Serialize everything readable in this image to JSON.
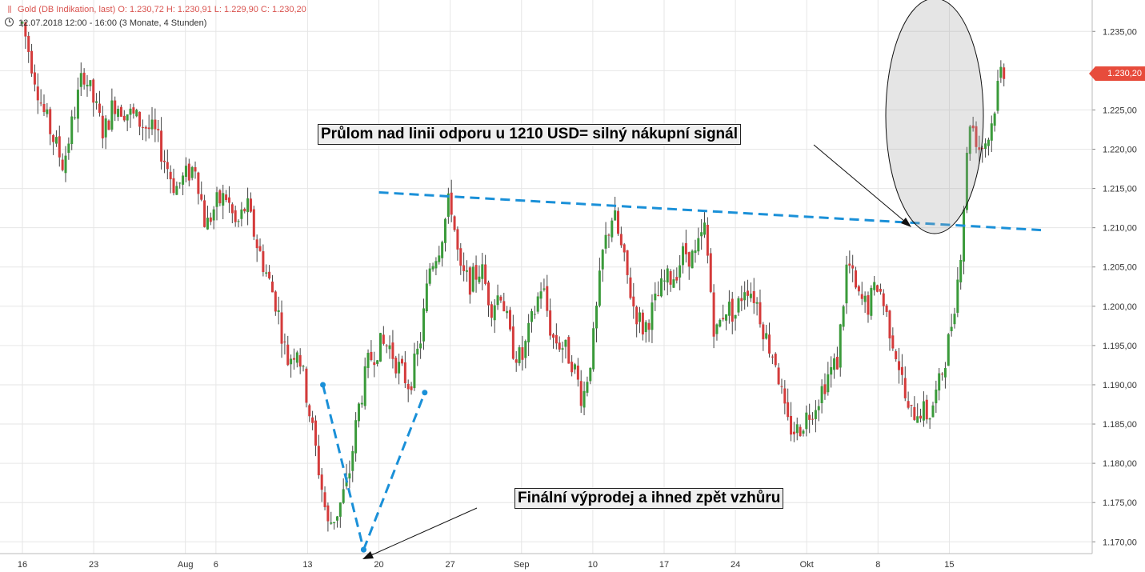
{
  "header": {
    "icon": "bar-chart-icon",
    "instrument_line": "Gold (DB Indikation, last)  O: 1.230,72  H: 1.230,91  L: 1.229,90  C: 1.230,20",
    "time_line": "12.07.2018 12:00 - 16:00   (3 Monate, 4 Stunden)"
  },
  "current_price_label": "1.230,20",
  "annotations": {
    "breakout": "Průlom nad linii odporu u 1210 USD= silný nákupní signál",
    "selloff": "Finální výprodej a ihned zpět vzhůru"
  },
  "colors": {
    "up": "#3a9a3a",
    "down": "#d43b3b",
    "trendline": "#1a90d8",
    "price_tag": "#e74c3c",
    "grid": "#e6e6e6"
  },
  "chart_data": {
    "type": "candlestick",
    "timeframe": "4 Stunden",
    "ylim": [
      1168.5,
      1239
    ],
    "y_ticks": [
      1170,
      1175,
      1180,
      1185,
      1190,
      1195,
      1200,
      1205,
      1210,
      1215,
      1220,
      1225,
      1230,
      1235
    ],
    "y_tick_labels": [
      "1.170,00",
      "1.175,00",
      "1.180,00",
      "1.185,00",
      "1.190,00",
      "1.195,00",
      "1.200,00",
      "1.205,00",
      "1.210,00",
      "1.215,00",
      "1.220,00",
      "1.225,00",
      "1.230,00",
      "1.235,00"
    ],
    "x_tick_labels": [
      "16",
      "23",
      "Aug",
      "6",
      "13",
      "20",
      "27",
      "Sep",
      "10",
      "17",
      "24",
      "Okt",
      "8",
      "15"
    ],
    "x_ticks_day": [
      0,
      7,
      16,
      19,
      28,
      35,
      42,
      49,
      56,
      63,
      70,
      77,
      84,
      91
    ],
    "price_path": [
      [
        0,
        1236
      ],
      [
        2,
        1225
      ],
      [
        4,
        1218
      ],
      [
        6,
        1230
      ],
      [
        8,
        1222
      ],
      [
        9,
        1226
      ],
      [
        11,
        1224
      ],
      [
        13,
        1222
      ],
      [
        15,
        1215
      ],
      [
        17,
        1218
      ],
      [
        18,
        1210
      ],
      [
        19,
        1213
      ],
      [
        20,
        1214
      ],
      [
        21,
        1210
      ],
      [
        22,
        1213
      ],
      [
        23,
        1208
      ],
      [
        25,
        1200
      ],
      [
        26,
        1193
      ],
      [
        27,
        1195
      ],
      [
        28,
        1188
      ],
      [
        29,
        1180
      ],
      [
        30,
        1172
      ],
      [
        31,
        1174
      ],
      [
        32,
        1178
      ],
      [
        33,
        1187
      ],
      [
        34,
        1193
      ],
      [
        35,
        1195
      ],
      [
        36,
        1195
      ],
      [
        37,
        1192
      ],
      [
        38,
        1190
      ],
      [
        39,
        1195
      ],
      [
        40,
        1205
      ],
      [
        41,
        1208
      ],
      [
        42,
        1214
      ],
      [
        43,
        1204
      ],
      [
        44,
        1203
      ],
      [
        45,
        1205
      ],
      [
        46,
        1200
      ],
      [
        47,
        1202
      ],
      [
        48,
        1195
      ],
      [
        49,
        1193
      ],
      [
        50,
        1198
      ],
      [
        51,
        1203
      ],
      [
        52,
        1196
      ],
      [
        53,
        1195
      ],
      [
        54,
        1193
      ],
      [
        55,
        1188
      ],
      [
        56,
        1195
      ],
      [
        57,
        1207
      ],
      [
        58,
        1212
      ],
      [
        59,
        1206
      ],
      [
        60,
        1200
      ],
      [
        61,
        1197
      ],
      [
        62,
        1200
      ],
      [
        63,
        1203
      ],
      [
        64,
        1204
      ],
      [
        65,
        1207
      ],
      [
        66,
        1206
      ],
      [
        67,
        1210
      ],
      [
        68,
        1196
      ],
      [
        69,
        1200
      ],
      [
        70,
        1199
      ],
      [
        71,
        1203
      ],
      [
        72,
        1201
      ],
      [
        73,
        1196
      ],
      [
        74,
        1193
      ],
      [
        75,
        1185
      ],
      [
        76,
        1184
      ],
      [
        77,
        1186
      ],
      [
        78,
        1188
      ],
      [
        79,
        1191
      ],
      [
        80,
        1193
      ],
      [
        81,
        1206
      ],
      [
        82,
        1201
      ],
      [
        83,
        1200
      ],
      [
        84,
        1203
      ],
      [
        85,
        1198
      ],
      [
        86,
        1193
      ],
      [
        87,
        1186
      ],
      [
        88,
        1187
      ],
      [
        89,
        1186
      ],
      [
        90,
        1190
      ],
      [
        91,
        1196
      ],
      [
        92,
        1205
      ],
      [
        93,
        1224
      ],
      [
        94,
        1220
      ],
      [
        95,
        1222
      ],
      [
        96,
        1230
      ],
      [
        96.5,
        1230.2
      ]
    ],
    "lines": [
      {
        "name": "resistance",
        "style": "dashed",
        "points": [
          [
            35,
            1214.5
          ],
          [
            100,
            1209.7
          ]
        ]
      },
      {
        "name": "v-left",
        "style": "dashed",
        "points": [
          [
            29.5,
            1190
          ],
          [
            33.5,
            1169
          ]
        ]
      },
      {
        "name": "v-right",
        "style": "dashed",
        "points": [
          [
            33.5,
            1169
          ],
          [
            39.5,
            1189
          ]
        ]
      }
    ]
  }
}
